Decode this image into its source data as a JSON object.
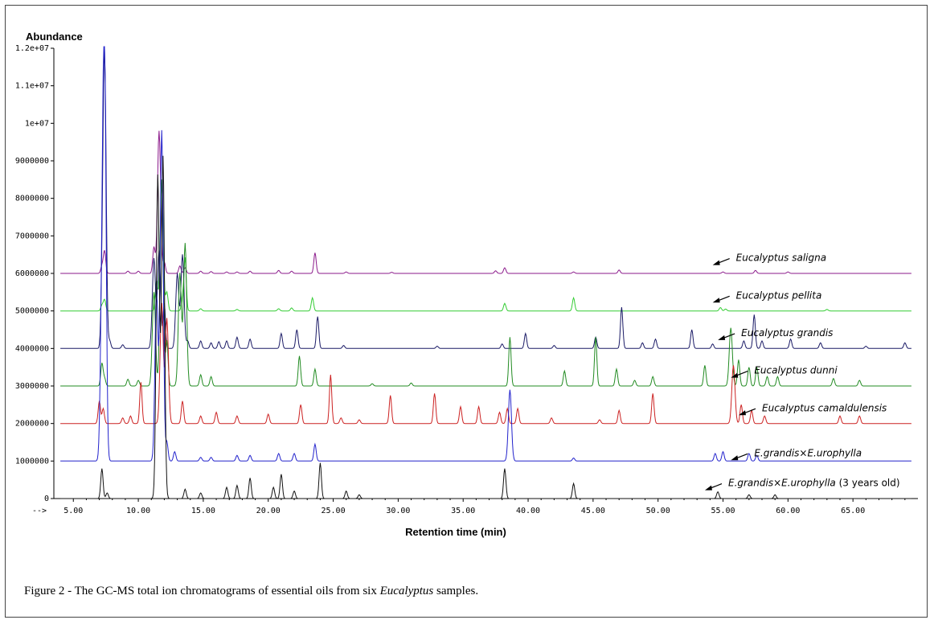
{
  "chart_data": {
    "type": "line",
    "ylabel": "Abundance",
    "xlabel": "Retention time (min)",
    "x_marker": "-->",
    "xlim": [
      3.5,
      70
    ],
    "ylim": [
      0,
      12000000
    ],
    "x_ticks": [
      "5.00",
      "10.00",
      "15.00",
      "20.00",
      "25.00",
      "30.00",
      "35.00",
      "40.00",
      "45.00",
      "50.00",
      "55.00",
      "60.00",
      "65.00"
    ],
    "y_ticks": [
      {
        "v": 0,
        "label": "0"
      },
      {
        "v": 1000000,
        "label": "1000000"
      },
      {
        "v": 2000000,
        "label": "2000000"
      },
      {
        "v": 3000000,
        "label": "3000000"
      },
      {
        "v": 4000000,
        "label": "4000000"
      },
      {
        "v": 5000000,
        "label": "5000000"
      },
      {
        "v": 6000000,
        "label": "6000000"
      },
      {
        "v": 7000000,
        "label": "7000000"
      },
      {
        "v": 8000000,
        "label": "8000000"
      },
      {
        "v": 9000000,
        "label": "9000000"
      },
      {
        "v": 10000000,
        "label": "1e+07"
      },
      {
        "v": 11000000,
        "label": "1.1e+07"
      },
      {
        "v": 12000000,
        "label": "1.2e+07"
      }
    ],
    "series": [
      {
        "name": "Eucalyptus saligna",
        "label_main": "Eucalyptus saligna",
        "label_suffix": "",
        "color": "#8b1a8b",
        "baseline": 6000000,
        "label_x": 56.0,
        "label_y": 6330000,
        "peaks": [
          [
            7.2,
            200000
          ],
          [
            7.4,
            600000
          ],
          [
            9.2,
            60000
          ],
          [
            10.0,
            60000
          ],
          [
            11.2,
            700000
          ],
          [
            11.6,
            3800000
          ],
          [
            12.0,
            300000
          ],
          [
            13.2,
            200000
          ],
          [
            13.6,
            150000
          ],
          [
            14.8,
            60000
          ],
          [
            15.6,
            50000
          ],
          [
            16.8,
            40000
          ],
          [
            17.6,
            40000
          ],
          [
            18.6,
            60000
          ],
          [
            20.8,
            80000
          ],
          [
            21.8,
            60000
          ],
          [
            23.6,
            550000
          ],
          [
            26.0,
            40000
          ],
          [
            29.5,
            30000
          ],
          [
            37.5,
            70000
          ],
          [
            38.2,
            150000
          ],
          [
            43.5,
            40000
          ],
          [
            47.0,
            90000
          ],
          [
            55.0,
            40000
          ],
          [
            57.5,
            80000
          ],
          [
            60.0,
            40000
          ]
        ]
      },
      {
        "name": "Eucalyptus pellita",
        "label_main": "Eucalyptus pellita",
        "label_suffix": "",
        "color": "#33cc33",
        "baseline": 5000000,
        "label_x": 56.0,
        "label_y": 5330000,
        "peaks": [
          [
            7.2,
            150000
          ],
          [
            7.4,
            300000
          ],
          [
            11.4,
            800000
          ],
          [
            11.8,
            3400000
          ],
          [
            12.2,
            500000
          ],
          [
            13.4,
            300000
          ],
          [
            13.6,
            1400000
          ],
          [
            14.8,
            60000
          ],
          [
            17.6,
            40000
          ],
          [
            20.8,
            60000
          ],
          [
            21.8,
            80000
          ],
          [
            23.4,
            350000
          ],
          [
            38.2,
            200000
          ],
          [
            43.5,
            350000
          ],
          [
            54.8,
            90000
          ],
          [
            55.2,
            50000
          ],
          [
            63.0,
            40000
          ]
        ]
      },
      {
        "name": "Eucalyptus grandis",
        "label_main": "Eucalyptus grandis",
        "label_suffix": "",
        "color": "#1a1a66",
        "baseline": 4000000,
        "label_x": 56.4,
        "label_y": 4330000,
        "peaks": [
          [
            7.2,
            1000000
          ],
          [
            7.4,
            7900000
          ],
          [
            7.8,
            200000
          ],
          [
            8.8,
            100000
          ],
          [
            11.2,
            2400000
          ],
          [
            11.6,
            2600000
          ],
          [
            12.0,
            1200000
          ],
          [
            13.0,
            2000000
          ],
          [
            13.4,
            2500000
          ],
          [
            13.8,
            200000
          ],
          [
            14.8,
            200000
          ],
          [
            15.6,
            150000
          ],
          [
            16.2,
            180000
          ],
          [
            16.8,
            200000
          ],
          [
            17.6,
            300000
          ],
          [
            18.6,
            250000
          ],
          [
            21.0,
            400000
          ],
          [
            22.2,
            500000
          ],
          [
            23.8,
            850000
          ],
          [
            25.8,
            80000
          ],
          [
            33.0,
            60000
          ],
          [
            38.0,
            120000
          ],
          [
            39.8,
            400000
          ],
          [
            42.0,
            80000
          ],
          [
            45.2,
            300000
          ],
          [
            47.2,
            1100000
          ],
          [
            48.8,
            150000
          ],
          [
            49.8,
            250000
          ],
          [
            52.6,
            500000
          ],
          [
            54.2,
            120000
          ],
          [
            56.6,
            200000
          ],
          [
            57.4,
            900000
          ],
          [
            58.0,
            200000
          ],
          [
            60.2,
            250000
          ],
          [
            62.5,
            150000
          ],
          [
            66.0,
            60000
          ],
          [
            69.0,
            150000
          ]
        ]
      },
      {
        "name": "Eucalyptus dunni",
        "label_main": "Eucalyptus dunni",
        "label_suffix": "",
        "color": "#228b22",
        "baseline": 3000000,
        "label_x": 57.4,
        "label_y": 3330000,
        "peaks": [
          [
            7.2,
            600000
          ],
          [
            7.4,
            200000
          ],
          [
            9.2,
            180000
          ],
          [
            10.0,
            150000
          ],
          [
            11.2,
            2500000
          ],
          [
            11.8,
            5500000
          ],
          [
            12.2,
            1200000
          ],
          [
            13.2,
            3000000
          ],
          [
            13.6,
            3800000
          ],
          [
            14.8,
            300000
          ],
          [
            15.6,
            250000
          ],
          [
            22.4,
            800000
          ],
          [
            23.6,
            450000
          ],
          [
            28.0,
            60000
          ],
          [
            31.0,
            80000
          ],
          [
            38.6,
            1300000
          ],
          [
            42.8,
            400000
          ],
          [
            45.2,
            1300000
          ],
          [
            46.8,
            450000
          ],
          [
            48.2,
            150000
          ],
          [
            49.6,
            250000
          ],
          [
            53.6,
            550000
          ],
          [
            55.6,
            1550000
          ],
          [
            56.2,
            700000
          ],
          [
            57.0,
            500000
          ],
          [
            57.6,
            500000
          ],
          [
            58.4,
            250000
          ],
          [
            59.2,
            250000
          ],
          [
            63.5,
            200000
          ],
          [
            65.5,
            150000
          ]
        ]
      },
      {
        "name": "Eucalyptus camaldulensis",
        "label_main": "Eucalyptus camaldulensis",
        "label_suffix": "",
        "color": "#cc2222",
        "baseline": 2000000,
        "label_x": 58.0,
        "label_y": 2330000,
        "peaks": [
          [
            7.0,
            600000
          ],
          [
            7.3,
            400000
          ],
          [
            8.8,
            150000
          ],
          [
            9.4,
            200000
          ],
          [
            10.2,
            1100000
          ],
          [
            11.8,
            3200000
          ],
          [
            12.2,
            2800000
          ],
          [
            13.4,
            600000
          ],
          [
            14.8,
            200000
          ],
          [
            16.0,
            300000
          ],
          [
            17.6,
            200000
          ],
          [
            20.0,
            250000
          ],
          [
            22.5,
            500000
          ],
          [
            24.8,
            1300000
          ],
          [
            25.6,
            150000
          ],
          [
            27.0,
            100000
          ],
          [
            29.4,
            750000
          ],
          [
            32.8,
            800000
          ],
          [
            34.8,
            450000
          ],
          [
            36.2,
            450000
          ],
          [
            37.8,
            300000
          ],
          [
            38.4,
            400000
          ],
          [
            39.2,
            400000
          ],
          [
            41.8,
            150000
          ],
          [
            45.5,
            100000
          ],
          [
            47.0,
            350000
          ],
          [
            49.6,
            800000
          ],
          [
            55.8,
            1550000
          ],
          [
            56.4,
            500000
          ],
          [
            57.2,
            350000
          ],
          [
            58.2,
            200000
          ],
          [
            64.0,
            200000
          ],
          [
            65.5,
            200000
          ]
        ]
      },
      {
        "name": "E.grandis×E.urophylla",
        "label_main": "E.grandis×E.urophylla",
        "label_suffix": "",
        "color": "#2222cc",
        "baseline": 1000000,
        "label_x": 57.4,
        "label_y": 1130000,
        "peaks": [
          [
            7.2,
            4200000
          ],
          [
            7.4,
            10500000
          ],
          [
            11.4,
            4500000
          ],
          [
            11.8,
            8800000
          ],
          [
            12.2,
            500000
          ],
          [
            12.8,
            250000
          ],
          [
            14.8,
            100000
          ],
          [
            15.6,
            100000
          ],
          [
            17.6,
            150000
          ],
          [
            18.6,
            150000
          ],
          [
            20.8,
            200000
          ],
          [
            22.0,
            200000
          ],
          [
            23.6,
            450000
          ],
          [
            38.6,
            1900000
          ],
          [
            43.5,
            80000
          ],
          [
            54.4,
            200000
          ],
          [
            55.0,
            250000
          ],
          [
            57.0,
            200000
          ],
          [
            57.6,
            150000
          ]
        ]
      },
      {
        "name": "E.grandis×E.urophylla (3 years old)",
        "label_main": "E.grandis×E.urophylla",
        "label_suffix": " (3 years old)",
        "color": "#111111",
        "baseline": 0,
        "label_x": 55.4,
        "label_y": 330000,
        "peaks": [
          [
            7.2,
            800000
          ],
          [
            7.6,
            150000
          ],
          [
            11.5,
            8600000
          ],
          [
            11.9,
            9100000
          ],
          [
            13.6,
            250000
          ],
          [
            14.8,
            150000
          ],
          [
            16.8,
            300000
          ],
          [
            17.6,
            350000
          ],
          [
            18.6,
            550000
          ],
          [
            20.4,
            300000
          ],
          [
            21.0,
            650000
          ],
          [
            22.0,
            200000
          ],
          [
            24.0,
            950000
          ],
          [
            26.0,
            200000
          ],
          [
            27.0,
            100000
          ],
          [
            38.2,
            800000
          ],
          [
            43.5,
            400000
          ],
          [
            54.6,
            180000
          ],
          [
            57.0,
            100000
          ],
          [
            59.0,
            100000
          ]
        ]
      }
    ]
  },
  "caption": {
    "prefix": "Figure 2 - The GC-MS total ion chromatograms of essential oils from six ",
    "genus": "Eucalyptus",
    "suffix": " samples."
  }
}
